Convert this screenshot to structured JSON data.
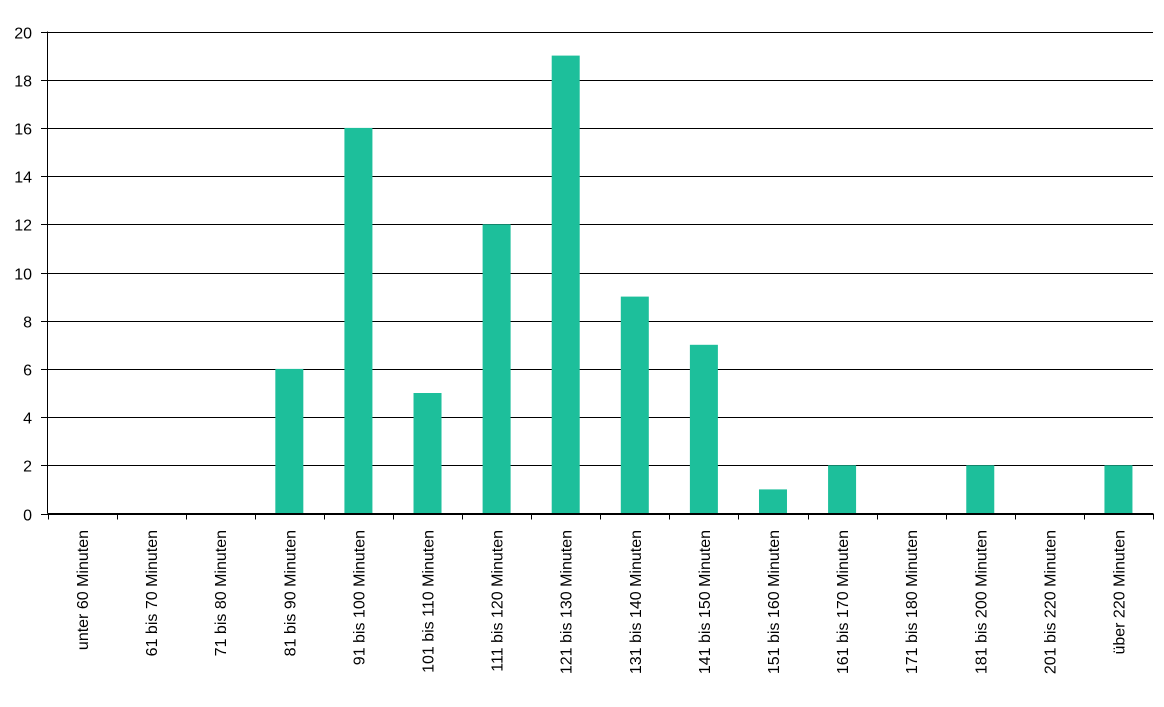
{
  "chart_data": {
    "type": "bar",
    "title": "",
    "xlabel": "",
    "ylabel": "",
    "categories": [
      "unter 60 Minuten",
      "61 bis 70 Minuten",
      "71 bis 80 Minuten",
      "81 bis 90 Minuten",
      "91 bis 100 Minuten",
      "101 bis 110 Minuten",
      "111 bis 120 Minuten",
      "121 bis 130 Minuten",
      "131 bis 140 Minuten",
      "141 bis 150 Minuten",
      "151 bis 160 Minuten",
      "161 bis 170 Minuten",
      "171 bis 180 Minuten",
      "181 bis 200 Minuten",
      "201 bis 220 Minuten",
      "über 220 Minuten"
    ],
    "values": [
      0,
      0,
      0,
      6,
      16,
      5,
      12,
      19,
      9,
      7,
      1,
      2,
      0,
      2,
      0,
      2
    ],
    "ylim": [
      0,
      20
    ],
    "yticks": [
      "0",
      "2",
      "4",
      "6",
      "8",
      "10",
      "12",
      "14",
      "16",
      "18",
      "20"
    ],
    "grid": true,
    "legend": "none",
    "bar_color": "#1dbf9b"
  }
}
